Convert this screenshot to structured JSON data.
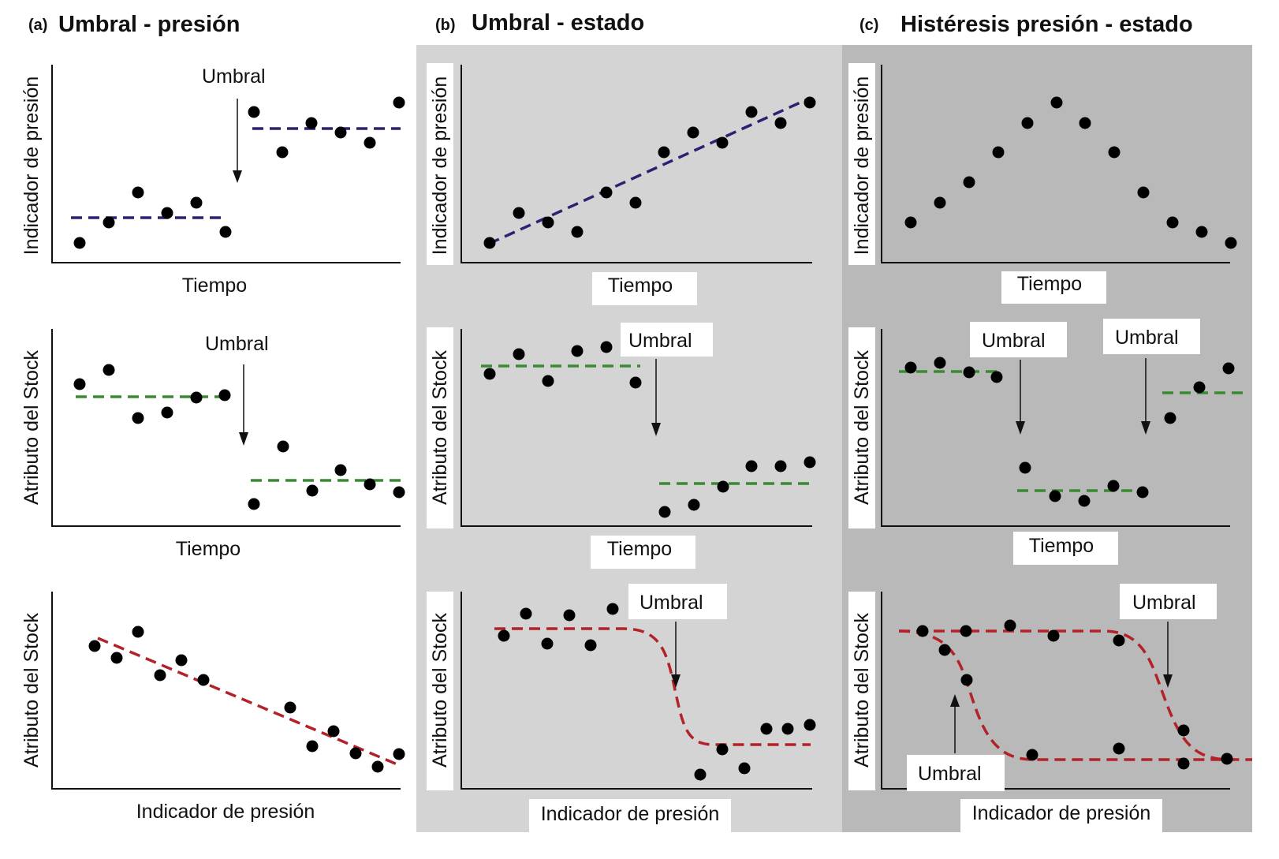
{
  "colors": {
    "panel_b_bg": "#d4d4d4",
    "panel_c_bg": "#b9b9b9",
    "pressure_line": "#2b2270",
    "stock_line": "#3a8a34",
    "response_line": "#b22228",
    "dot": "#000000"
  },
  "columns": [
    {
      "id": "a",
      "letter": "(a)",
      "title": "Umbral - presión",
      "plots": [
        {
          "row": 1,
          "ylabel": "Indicador de presión",
          "xlabel": "Tiempo",
          "annotations": [
            {
              "text": "Umbral",
              "arrow": "down"
            }
          ],
          "points": [
            [
              0.08,
              0.1
            ],
            [
              0.16,
              0.2
            ],
            [
              0.25,
              0.35
            ],
            [
              0.33,
              0.25
            ],
            [
              0.41,
              0.3
            ],
            [
              0.47,
              0.15
            ],
            [
              0.58,
              0.75
            ],
            [
              0.66,
              0.58
            ],
            [
              0.74,
              0.72
            ],
            [
              0.83,
              0.66
            ],
            [
              0.91,
              0.6
            ],
            [
              0.97,
              0.78
            ]
          ],
          "lines": [
            {
              "kind": "step-before",
              "color": "pressure_line"
            },
            {
              "kind": "step-after",
              "color": "pressure_line"
            }
          ]
        },
        {
          "row": 2,
          "ylabel": "Atributo del Stock",
          "xlabel": "Tiempo",
          "annotations": [
            {
              "text": "Umbral",
              "arrow": "down"
            }
          ],
          "points": [
            [
              0.08,
              0.72
            ],
            [
              0.16,
              0.78
            ],
            [
              0.25,
              0.55
            ],
            [
              0.33,
              0.58
            ],
            [
              0.41,
              0.68
            ],
            [
              0.49,
              0.7
            ],
            [
              0.58,
              0.12
            ],
            [
              0.66,
              0.35
            ],
            [
              0.74,
              0.18
            ],
            [
              0.83,
              0.28
            ],
            [
              0.91,
              0.22
            ],
            [
              0.97,
              0.18
            ]
          ],
          "lines": [
            {
              "kind": "step-before",
              "color": "stock_line"
            },
            {
              "kind": "step-after",
              "color": "stock_line"
            }
          ]
        },
        {
          "row": 3,
          "ylabel": "Atributo del Stock",
          "xlabel": "Indicador de presión",
          "annotations": [],
          "points": [
            [
              0.12,
              0.7
            ],
            [
              0.18,
              0.62
            ],
            [
              0.25,
              0.78
            ],
            [
              0.31,
              0.55
            ],
            [
              0.37,
              0.6
            ],
            [
              0.43,
              0.52
            ],
            [
              0.62,
              0.38
            ],
            [
              0.68,
              0.2
            ],
            [
              0.74,
              0.25
            ],
            [
              0.8,
              0.15
            ],
            [
              0.86,
              0.1
            ],
            [
              0.92,
              0.12
            ]
          ],
          "lines": [
            {
              "kind": "linear",
              "color": "response_line"
            }
          ]
        }
      ]
    },
    {
      "id": "b",
      "letter": "(b)",
      "title": "Umbral - estado",
      "plots": [
        {
          "row": 1,
          "ylabel": "Indicador de presión",
          "xlabel": "Tiempo",
          "annotations": [],
          "points": [
            [
              0.08,
              0.1
            ],
            [
              0.16,
              0.25
            ],
            [
              0.23,
              0.2
            ],
            [
              0.3,
              0.15
            ],
            [
              0.37,
              0.35
            ],
            [
              0.44,
              0.3
            ],
            [
              0.52,
              0.55
            ],
            [
              0.59,
              0.65
            ],
            [
              0.66,
              0.6
            ],
            [
              0.73,
              0.78
            ],
            [
              0.8,
              0.72
            ],
            [
              0.87,
              0.82
            ]
          ],
          "lines": [
            {
              "kind": "linear",
              "color": "pressure_line"
            }
          ]
        },
        {
          "row": 2,
          "ylabel": "Atributo del Stock",
          "xlabel": "Tiempo",
          "annotations": [
            {
              "text": "Umbral",
              "arrow": "down"
            }
          ],
          "points": [
            [
              0.08,
              0.78
            ],
            [
              0.15,
              0.88
            ],
            [
              0.23,
              0.75
            ],
            [
              0.31,
              0.85
            ],
            [
              0.38,
              0.9
            ],
            [
              0.45,
              0.73
            ],
            [
              0.56,
              0.08
            ],
            [
              0.64,
              0.12
            ],
            [
              0.72,
              0.22
            ],
            [
              0.8,
              0.32
            ],
            [
              0.88,
              0.32
            ],
            [
              0.95,
              0.34
            ]
          ],
          "lines": [
            {
              "kind": "step-before",
              "color": "stock_line"
            },
            {
              "kind": "step-after",
              "color": "stock_line"
            }
          ]
        },
        {
          "row": 3,
          "ylabel": "Atributo del Stock",
          "xlabel": "Indicador de presión",
          "annotations": [
            {
              "text": "Umbral",
              "arrow": "down"
            }
          ],
          "points": [
            [
              0.12,
              0.78
            ],
            [
              0.18,
              0.9
            ],
            [
              0.24,
              0.75
            ],
            [
              0.3,
              0.88
            ],
            [
              0.36,
              0.73
            ],
            [
              0.42,
              0.92
            ],
            [
              0.68,
              0.1
            ],
            [
              0.75,
              0.18
            ],
            [
              0.83,
              0.1
            ],
            [
              0.9,
              0.3
            ],
            [
              0.96,
              0.3
            ],
            [
              1.0,
              0.32
            ]
          ],
          "lines": [
            {
              "kind": "sigmoid",
              "color": "response_line"
            }
          ]
        }
      ]
    },
    {
      "id": "c",
      "letter": "(c)",
      "title": "Histéresis presión - estado",
      "plots": [
        {
          "row": 1,
          "ylabel": "Indicador de presión",
          "xlabel": "Tiempo",
          "annotations": [],
          "points": [
            [
              0.08,
              0.2
            ],
            [
              0.16,
              0.3
            ],
            [
              0.24,
              0.4
            ],
            [
              0.32,
              0.55
            ],
            [
              0.4,
              0.7
            ],
            [
              0.48,
              0.8
            ],
            [
              0.56,
              0.7
            ],
            [
              0.64,
              0.55
            ],
            [
              0.72,
              0.35
            ],
            [
              0.8,
              0.2
            ],
            [
              0.88,
              0.15
            ],
            [
              0.96,
              0.1
            ]
          ],
          "lines": []
        },
        {
          "row": 2,
          "ylabel": "Atributo del Stock",
          "xlabel": "Tiempo",
          "annotations": [
            {
              "text": "Umbral",
              "arrow": "down"
            },
            {
              "text": "Umbral",
              "arrow": "down"
            }
          ],
          "points": [
            [
              0.06,
              0.82
            ],
            [
              0.14,
              0.86
            ],
            [
              0.22,
              0.8
            ],
            [
              0.29,
              0.78
            ],
            [
              0.38,
              0.3
            ],
            [
              0.46,
              0.15
            ],
            [
              0.54,
              0.12
            ],
            [
              0.62,
              0.2
            ],
            [
              0.7,
              0.18
            ],
            [
              0.78,
              0.55
            ],
            [
              0.86,
              0.7
            ],
            [
              0.94,
              0.8
            ]
          ],
          "lines": [
            {
              "kind": "step-3",
              "color": "stock_line"
            }
          ]
        },
        {
          "row": 3,
          "ylabel": "Atributo del Stock",
          "xlabel": "Indicador de presión",
          "annotations": [
            {
              "text": "Umbral",
              "arrow": "down"
            },
            {
              "text": "Umbral",
              "arrow": "up"
            }
          ],
          "points": [
            [
              0.12,
              0.82
            ],
            [
              0.18,
              0.75
            ],
            [
              0.24,
              0.62
            ],
            [
              0.3,
              0.88
            ],
            [
              0.42,
              0.82
            ],
            [
              0.58,
              0.8
            ],
            [
              0.68,
              0.3
            ],
            [
              0.8,
              0.2
            ],
            [
              0.88,
              0.12
            ],
            [
              0.94,
              0.08
            ],
            [
              0.34,
              0.18
            ],
            [
              0.5,
              0.2
            ]
          ],
          "lines": [
            {
              "kind": "sigmoid-hysteresis",
              "color": "response_line"
            }
          ]
        }
      ]
    }
  ]
}
